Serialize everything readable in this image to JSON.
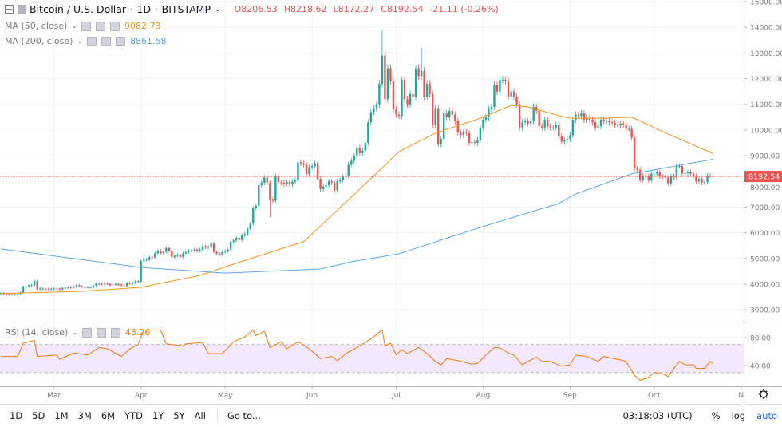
{
  "header": {
    "collapse_icon": "minus-square-icon",
    "symbol_title": "Bitcoin / U.S. Dollar",
    "interval": "1D",
    "exchange": "BITSTAMP",
    "ohlc": {
      "o_label": "O",
      "o": "8206.53",
      "h_label": "H",
      "h": "8218.62",
      "l_label": "L",
      "l": "8172.27",
      "c_label": "C",
      "c": "8192.54",
      "change": "-21.11 (-0.26%)"
    }
  },
  "indicators": [
    {
      "label": "MA (50, close)",
      "value": "9082.73",
      "color": "#f7931a"
    },
    {
      "label": "MA (200, close)",
      "value": "8861.58",
      "color": "#5ba7e6"
    }
  ],
  "rsi_legend": {
    "label": "RSI (14, close)",
    "value": "43.26",
    "color": "#f57c00"
  },
  "colors": {
    "up": "#26a69a",
    "down": "#ef5350",
    "band": "#f3e8fd",
    "last_price": "#ef5350"
  },
  "price_axis": {
    "ticks": [
      "15000.00",
      "14000.00",
      "13000.00",
      "12000.00",
      "11000.00",
      "10000.00",
      "9000.00",
      "8000.00",
      "7000.00",
      "6000.00",
      "5000.00",
      "4000.00",
      "3000.00"
    ],
    "last_price": "8192.54"
  },
  "rsi_axis": {
    "ticks": [
      "80.00",
      "40.00"
    ],
    "band": [
      30,
      70
    ]
  },
  "time_axis": {
    "labels": [
      {
        "date": "2019-03-01",
        "text": "Mar"
      },
      {
        "date": "2019-04-01",
        "text": "Apr"
      },
      {
        "date": "2019-05-01",
        "text": "May"
      },
      {
        "date": "2019-06-01",
        "text": "Jun"
      },
      {
        "date": "2019-07-01",
        "text": "Jul"
      },
      {
        "date": "2019-08-01",
        "text": "Aug"
      },
      {
        "date": "2019-09-01",
        "text": "Sep"
      },
      {
        "date": "2019-10-01",
        "text": "Oct"
      },
      {
        "date": "2019-11-01",
        "text": "N"
      }
    ]
  },
  "settings_icon": "gear-icon",
  "chart_data": {
    "type": "candlestick",
    "start_date": "2019-02-10",
    "ylim": [
      2950,
      15050
    ],
    "closes": [
      3650,
      3630,
      3610,
      3600,
      3590,
      3610,
      3620,
      3680,
      3900,
      3910,
      3950,
      3960,
      4120,
      3800,
      3830,
      3810,
      3820,
      3800,
      3820,
      3830,
      3820,
      3800,
      3850,
      3860,
      3880,
      3870,
      3900,
      3950,
      3920,
      3880,
      3890,
      3870,
      3880,
      3950,
      4020,
      4000,
      3990,
      4020,
      4010,
      3960,
      3990,
      4000,
      3980,
      3950,
      3930,
      4040,
      4020,
      4050,
      4110,
      4100,
      4900,
      4950,
      4950,
      5050,
      5040,
      5200,
      5300,
      5200,
      5250,
      5400,
      5300,
      5050,
      5100,
      5150,
      5060,
      5200,
      5250,
      5300,
      5320,
      5350,
      5290,
      5350,
      5480,
      5420,
      5450,
      5580,
      5250,
      5190,
      5150,
      5250,
      5280,
      5340,
      5650,
      5700,
      5800,
      5720,
      5900,
      5950,
      6150,
      6350,
      6960,
      7050,
      7850,
      7950,
      8150,
      7950,
      7300,
      7250,
      8200,
      7970,
      7950,
      7890,
      7980,
      7880,
      7990,
      8050,
      8750,
      8700,
      8650,
      8280,
      8550,
      8600,
      8700,
      8100,
      7700,
      7800,
      7850,
      8000,
      7950,
      7650,
      8000,
      8050,
      8180,
      8220,
      8650,
      8800,
      8990,
      9300,
      9100,
      9200,
      9500,
      10300,
      10700,
      10850,
      11000,
      11800,
      12900,
      11200,
      12400,
      11900,
      10800,
      10600,
      10550,
      11950,
      11200,
      11000,
      11400,
      11300,
      12400,
      12100,
      12300,
      11300,
      11800,
      11400,
      10200,
      10850,
      9450,
      9650,
      10650,
      10500,
      10750,
      10600,
      10350,
      9900,
      9800,
      9900,
      9880,
      9500,
      9530,
      9500,
      9620,
      10100,
      10400,
      10500,
      10800,
      10900,
      11750,
      11500,
      11950,
      11950,
      11900,
      11300,
      11500,
      11300,
      11000,
      10100,
      10300,
      10350,
      10250,
      10350,
      10900,
      10750,
      10150,
      10100,
      10400,
      10150,
      10100,
      10100,
      10200,
      9750,
      9550,
      9600,
      9650,
      9800,
      10400,
      10600,
      10550,
      10650,
      10400,
      10480,
      10400,
      10300,
      10100,
      10150,
      10400,
      10350,
      10350,
      10300,
      10280,
      10200,
      10180,
      10250,
      10200,
      10050,
      10050,
      9700,
      8500,
      8450,
      8050,
      8230,
      8200,
      8050,
      8300,
      8300,
      8350,
      8200,
      8180,
      8150,
      7920,
      8200,
      8150,
      8600,
      8600,
      8300,
      8320,
      8350,
      8300,
      8200,
      8000,
      8100,
      7950,
      7980,
      8220,
      8213.65,
      8192.54
    ],
    "last_candle": {
      "open": 8206.53,
      "high": 8218.62,
      "low": 8172.27,
      "close": 8192.54
    },
    "wick_extremes": [
      {
        "date": "2019-06-26",
        "high": 13880
      },
      {
        "date": "2019-07-10",
        "high": 13200
      },
      {
        "date": "2019-05-17",
        "low": 6600
      },
      {
        "date": "2019-04-02",
        "high": 5150
      }
    ],
    "ma50": [
      [
        "2019-02-10",
        3630
      ],
      [
        "2019-03-10",
        3720
      ],
      [
        "2019-04-01",
        3875
      ],
      [
        "2019-04-22",
        4340
      ],
      [
        "2019-05-09",
        4960
      ],
      [
        "2019-05-29",
        5650
      ],
      [
        "2019-06-15",
        7390
      ],
      [
        "2019-06-24",
        8320
      ],
      [
        "2019-07-02",
        9160
      ],
      [
        "2019-07-15",
        9880
      ],
      [
        "2019-07-31",
        10460
      ],
      [
        "2019-08-11",
        10960
      ],
      [
        "2019-08-17",
        10900
      ],
      [
        "2019-08-28",
        10560
      ],
      [
        "2019-09-01",
        10460
      ],
      [
        "2019-09-14",
        10460
      ],
      [
        "2019-09-23",
        10500
      ],
      [
        "2019-10-04",
        9940
      ],
      [
        "2019-10-22",
        9082.73
      ]
    ],
    "ma200": [
      [
        "2019-02-10",
        5370
      ],
      [
        "2019-04-01",
        4650
      ],
      [
        "2019-05-01",
        4430
      ],
      [
        "2019-06-04",
        4590
      ],
      [
        "2019-06-15",
        4870
      ],
      [
        "2019-07-02",
        5180
      ],
      [
        "2019-07-31",
        6210
      ],
      [
        "2019-08-28",
        7140
      ],
      [
        "2019-09-03",
        7510
      ],
      [
        "2019-09-23",
        8290
      ],
      [
        "2019-10-22",
        8861.58
      ]
    ],
    "rsi": [
      [
        "2019-02-10",
        53
      ],
      [
        "2019-02-16",
        53
      ],
      [
        "2019-02-18",
        72
      ],
      [
        "2019-02-22",
        76
      ],
      [
        "2019-02-23",
        53
      ],
      [
        "2019-03-02",
        55
      ],
      [
        "2019-03-03",
        49
      ],
      [
        "2019-03-08",
        58
      ],
      [
        "2019-03-13",
        55
      ],
      [
        "2019-03-17",
        66
      ],
      [
        "2019-03-20",
        64
      ],
      [
        "2019-03-25",
        53
      ],
      [
        "2019-03-28",
        64
      ],
      [
        "2019-03-31",
        70
      ],
      [
        "2019-04-02",
        91
      ],
      [
        "2019-04-08",
        91
      ],
      [
        "2019-04-10",
        71
      ],
      [
        "2019-04-16",
        68
      ],
      [
        "2019-04-17",
        71
      ],
      [
        "2019-04-23",
        73
      ],
      [
        "2019-04-25",
        57
      ],
      [
        "2019-04-30",
        57
      ],
      [
        "2019-05-04",
        74
      ],
      [
        "2019-05-08",
        81
      ],
      [
        "2019-05-11",
        91
      ],
      [
        "2019-05-12",
        83
      ],
      [
        "2019-05-15",
        89
      ],
      [
        "2019-05-17",
        66
      ],
      [
        "2019-05-21",
        74
      ],
      [
        "2019-05-23",
        64
      ],
      [
        "2019-05-27",
        74
      ],
      [
        "2019-05-31",
        64
      ],
      [
        "2019-06-04",
        50
      ],
      [
        "2019-06-08",
        53
      ],
      [
        "2019-06-10",
        47
      ],
      [
        "2019-06-13",
        57
      ],
      [
        "2019-06-18",
        68
      ],
      [
        "2019-06-23",
        81
      ],
      [
        "2019-06-26",
        91
      ],
      [
        "2019-06-27",
        68
      ],
      [
        "2019-06-29",
        72
      ],
      [
        "2019-07-01",
        55
      ],
      [
        "2019-07-03",
        63
      ],
      [
        "2019-07-05",
        57
      ],
      [
        "2019-07-09",
        66
      ],
      [
        "2019-07-12",
        57
      ],
      [
        "2019-07-15",
        46
      ],
      [
        "2019-07-17",
        41
      ],
      [
        "2019-07-19",
        50
      ],
      [
        "2019-07-23",
        47
      ],
      [
        "2019-07-28",
        42
      ],
      [
        "2019-07-30",
        43
      ],
      [
        "2019-08-02",
        55
      ],
      [
        "2019-08-05",
        66
      ],
      [
        "2019-08-07",
        65
      ],
      [
        "2019-08-10",
        58
      ],
      [
        "2019-08-12",
        55
      ],
      [
        "2019-08-15",
        41
      ],
      [
        "2019-08-17",
        46
      ],
      [
        "2019-08-20",
        52
      ],
      [
        "2019-08-22",
        46
      ],
      [
        "2019-08-25",
        46
      ],
      [
        "2019-08-29",
        39
      ],
      [
        "2019-09-01",
        41
      ],
      [
        "2019-09-03",
        55
      ],
      [
        "2019-09-07",
        53
      ],
      [
        "2019-09-11",
        46
      ],
      [
        "2019-09-13",
        53
      ],
      [
        "2019-09-19",
        48
      ],
      [
        "2019-09-21",
        46
      ],
      [
        "2019-09-24",
        26
      ],
      [
        "2019-09-26",
        19
      ],
      [
        "2019-09-29",
        23
      ],
      [
        "2019-10-01",
        30
      ],
      [
        "2019-10-05",
        27
      ],
      [
        "2019-10-06",
        24
      ],
      [
        "2019-10-08",
        36
      ],
      [
        "2019-10-10",
        46
      ],
      [
        "2019-10-12",
        41
      ],
      [
        "2019-10-15",
        41
      ],
      [
        "2019-10-16",
        36
      ],
      [
        "2019-10-19",
        36
      ],
      [
        "2019-10-21",
        46
      ],
      [
        "2019-10-22",
        43.26
      ]
    ],
    "rsi_ylim": [
      0,
      100
    ],
    "grid": true
  },
  "bottom_bar": {
    "ranges": [
      "1D",
      "5D",
      "1M",
      "3M",
      "6M",
      "YTD",
      "1Y",
      "5Y",
      "All"
    ],
    "goto": "Go to...",
    "clock": "03:18:03 (UTC)",
    "percent": "%",
    "log": "log",
    "auto": "auto"
  }
}
